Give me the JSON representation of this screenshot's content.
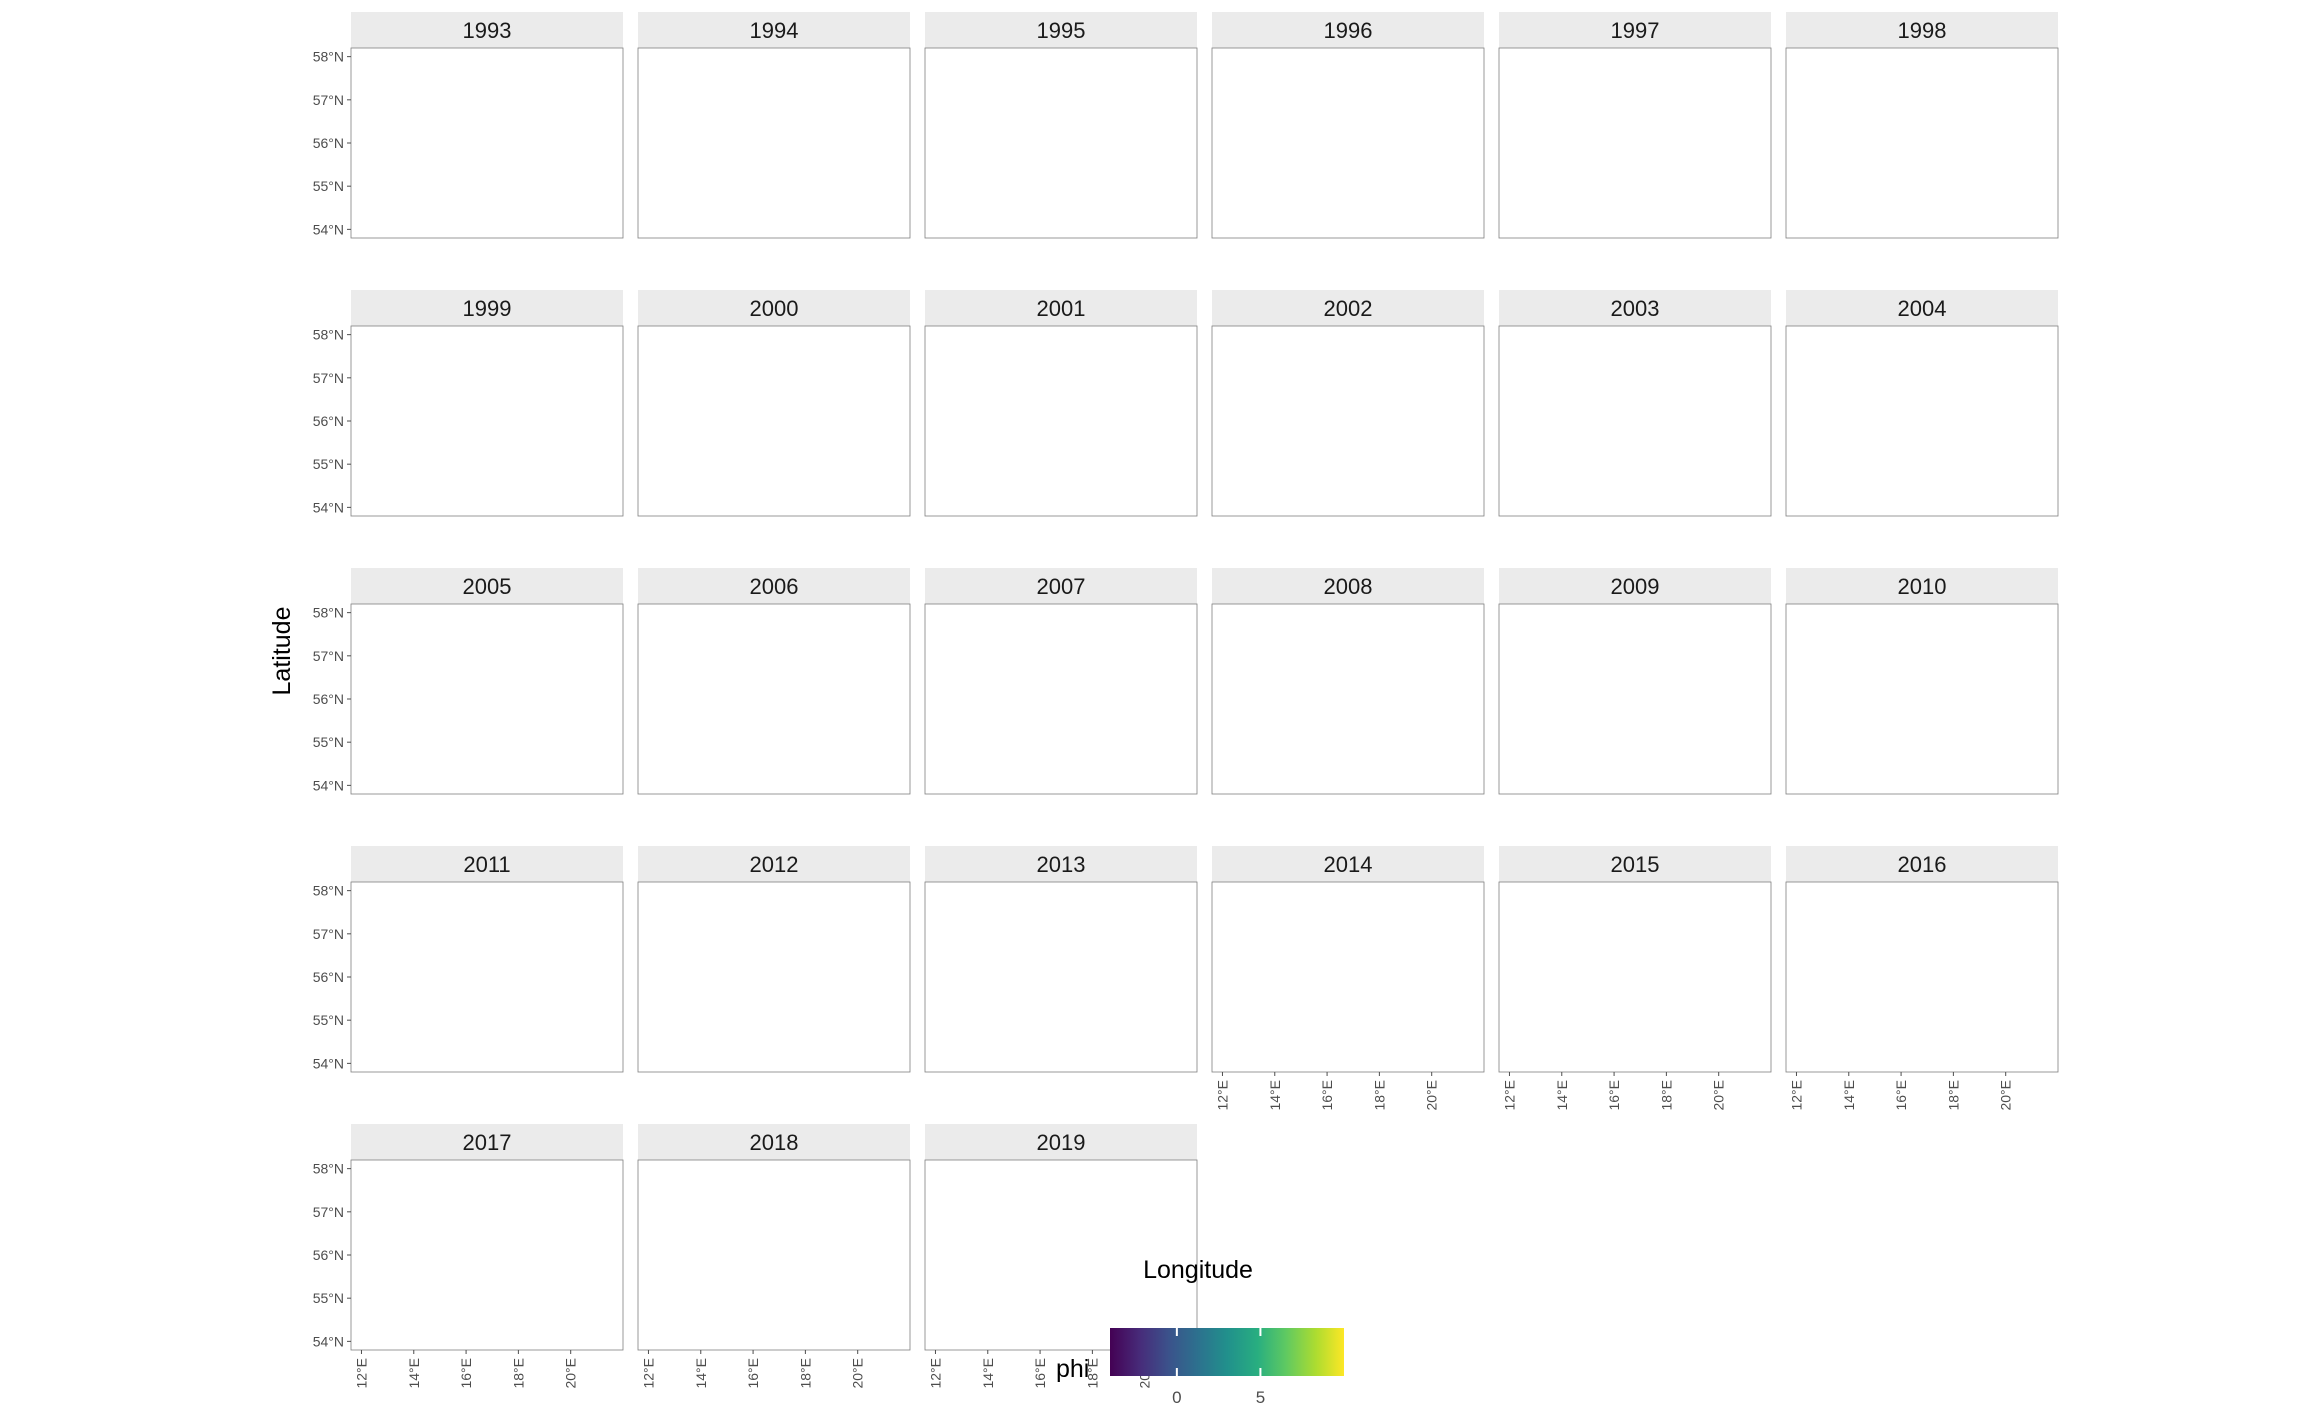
{
  "chart_data": {
    "type": "heatmap",
    "subtype": "faceted spatial raster maps",
    "facets": [
      "1993",
      "1994",
      "1995",
      "1996",
      "1997",
      "1998",
      "1999",
      "2000",
      "2001",
      "2002",
      "2003",
      "2004",
      "2005",
      "2006",
      "2007",
      "2008",
      "2009",
      "2010",
      "2011",
      "2012",
      "2013",
      "2014",
      "2015",
      "2016",
      "2017",
      "2018",
      "2019"
    ],
    "xlabel": "Longitude",
    "ylabel": "Latitude",
    "x_ticks": [
      "12°E",
      "14°E",
      "16°E",
      "18°E",
      "20°E"
    ],
    "x_tick_values": [
      12,
      14,
      16,
      18,
      20
    ],
    "y_ticks": [
      "58°N",
      "57°N",
      "56°N",
      "55°N",
      "54°N"
    ],
    "y_tick_values": [
      58,
      57,
      56,
      55,
      54
    ],
    "xlim": [
      11.6,
      22.0
    ],
    "ylim": [
      53.8,
      58.2
    ],
    "legend": {
      "title": "phi",
      "labels": [
        "0",
        "5"
      ],
      "label_values": [
        0,
        5
      ],
      "range": [
        -4,
        10
      ],
      "colormap": "viridis",
      "position": "bottom"
    },
    "colors": {
      "land": "#d9d9d9",
      "coast": "#4a4a4a",
      "strip": "#ebebeb",
      "viridis_low": "#440154",
      "viridis_mid": "#21908c",
      "viridis_high": "#fde725"
    },
    "facet_layout": {
      "columns": 6,
      "rows": 5
    }
  }
}
